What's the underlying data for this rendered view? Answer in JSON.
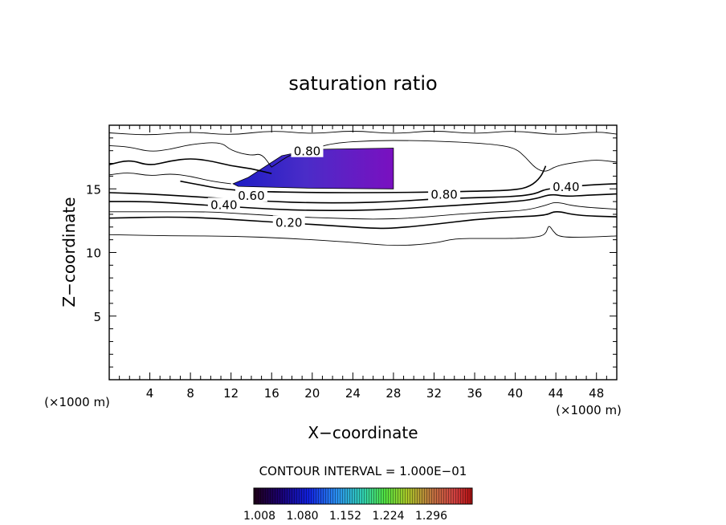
{
  "chart_data": {
    "type": "contour",
    "title": "saturation ratio",
    "xlabel": "X−coordinate",
    "ylabel": "Z−coordinate",
    "x_unit_label": "(×1000 m)",
    "y_unit_label": "(×1000 m)",
    "xlim": [
      0,
      50
    ],
    "ylim": [
      0,
      20
    ],
    "x_ticks": [
      4,
      8,
      12,
      16,
      20,
      24,
      28,
      32,
      36,
      40,
      44,
      48
    ],
    "y_ticks": [
      5,
      10,
      15
    ],
    "grid": false,
    "contour_interval_text": "CONTOUR INTERVAL = 1.000E−01",
    "contour_labels": [
      {
        "text": "0.20",
        "x": 17.7,
        "z": 12.4
      },
      {
        "text": "0.40",
        "x": 11.3,
        "z": 13.8
      },
      {
        "text": "0.40",
        "x": 45.0,
        "z": 15.2
      },
      {
        "text": "0.60",
        "x": 14.0,
        "z": 14.5
      },
      {
        "text": "0.80",
        "x": 33.0,
        "z": 14.6
      },
      {
        "text": "0.80",
        "x": 19.5,
        "z": 18.0
      }
    ],
    "contours": [
      {
        "level": 0.1,
        "points": [
          [
            0,
            11.4
          ],
          [
            6,
            11.3
          ],
          [
            12,
            11.3
          ],
          [
            18,
            11.1
          ],
          [
            24,
            10.8
          ],
          [
            28,
            10.5
          ],
          [
            32,
            10.7
          ],
          [
            34,
            11.1
          ],
          [
            37,
            11.1
          ],
          [
            40,
            11.1
          ],
          [
            42,
            11.2
          ],
          [
            43,
            11.4
          ],
          [
            43.3,
            12.2
          ],
          [
            43.7,
            11.7
          ],
          [
            44.3,
            11.2
          ],
          [
            47,
            11.2
          ],
          [
            50,
            11.3
          ]
        ]
      },
      {
        "level": 0.2,
        "points": [
          [
            0,
            12.7
          ],
          [
            6,
            12.8
          ],
          [
            10,
            12.7
          ],
          [
            14,
            12.5
          ],
          [
            18,
            12.3
          ],
          [
            22,
            12.1
          ],
          [
            26,
            11.9
          ],
          [
            28,
            11.9
          ],
          [
            32,
            12.2
          ],
          [
            36,
            12.6
          ],
          [
            40,
            12.8
          ],
          [
            43,
            12.9
          ],
          [
            44,
            13.3
          ],
          [
            46,
            12.9
          ],
          [
            50,
            12.8
          ]
        ]
      },
      {
        "level": 0.3,
        "points": [
          [
            0,
            13.2
          ],
          [
            6,
            13.2
          ],
          [
            10,
            13.2
          ],
          [
            14,
            13.0
          ],
          [
            18,
            12.8
          ],
          [
            22,
            12.7
          ],
          [
            26,
            12.6
          ],
          [
            30,
            12.7
          ],
          [
            34,
            13.0
          ],
          [
            38,
            13.2
          ],
          [
            41,
            13.3
          ],
          [
            43,
            13.7
          ],
          [
            44,
            14.0
          ],
          [
            46,
            13.6
          ],
          [
            50,
            13.4
          ]
        ]
      },
      {
        "level": 0.4,
        "points": [
          [
            0,
            14.0
          ],
          [
            4,
            14.0
          ],
          [
            8,
            13.8
          ],
          [
            12,
            13.6
          ],
          [
            16,
            13.4
          ],
          [
            20,
            13.3
          ],
          [
            24,
            13.3
          ],
          [
            28,
            13.4
          ],
          [
            32,
            13.6
          ],
          [
            36,
            13.8
          ],
          [
            40,
            14.0
          ],
          [
            42,
            14.2
          ],
          [
            43.5,
            14.6
          ],
          [
            45,
            14.4
          ],
          [
            47,
            14.5
          ],
          [
            50,
            14.6
          ]
        ]
      },
      {
        "level": 0.6,
        "points": [
          [
            0,
            14.7
          ],
          [
            4,
            14.6
          ],
          [
            8,
            14.4
          ],
          [
            12,
            14.2
          ],
          [
            16,
            14.0
          ],
          [
            20,
            13.9
          ],
          [
            24,
            13.9
          ],
          [
            28,
            14.0
          ],
          [
            32,
            14.2
          ],
          [
            36,
            14.3
          ],
          [
            40,
            14.4
          ],
          [
            42,
            14.6
          ],
          [
            43,
            15.0
          ],
          [
            45,
            15.1
          ],
          [
            47,
            15.3
          ],
          [
            50,
            15.4
          ]
        ]
      },
      {
        "level": 0.8,
        "points": [
          [
            7,
            15.6
          ],
          [
            9,
            15.3
          ],
          [
            11,
            15.0
          ],
          [
            14,
            14.8
          ],
          [
            20,
            14.7
          ],
          [
            28,
            14.7
          ],
          [
            36,
            14.8
          ],
          [
            40,
            14.9
          ],
          [
            41.5,
            15.2
          ],
          [
            42.5,
            15.9
          ],
          [
            43,
            16.8
          ]
        ]
      },
      {
        "level": 0.9,
        "points": [
          [
            16,
            16.7
          ],
          [
            18,
            17.8
          ],
          [
            20,
            18.1
          ],
          [
            22,
            18.6
          ],
          [
            26,
            18.8
          ],
          [
            30,
            18.8
          ],
          [
            34,
            18.7
          ],
          [
            38,
            18.5
          ],
          [
            40,
            18.2
          ],
          [
            41,
            17.5
          ],
          [
            42,
            16.6
          ],
          [
            43,
            16.3
          ],
          [
            44,
            16.8
          ],
          [
            46,
            17.1
          ],
          [
            48,
            17.3
          ],
          [
            50,
            17.1
          ]
        ]
      },
      {
        "level": 0.9,
        "points": [
          [
            0,
            18.4
          ],
          [
            2,
            18.3
          ],
          [
            4,
            17.9
          ],
          [
            6,
            18.1
          ],
          [
            8,
            18.5
          ],
          [
            11,
            18.7
          ],
          [
            12,
            18.0
          ],
          [
            14,
            17.6
          ],
          [
            15,
            17.8
          ],
          [
            16,
            16.7
          ]
        ]
      },
      {
        "level": 0.8,
        "points": [
          [
            0,
            16.9
          ],
          [
            2,
            17.3
          ],
          [
            4,
            16.8
          ],
          [
            6,
            17.2
          ],
          [
            8,
            17.4
          ],
          [
            10,
            17.2
          ],
          [
            12,
            16.8
          ],
          [
            14,
            16.6
          ],
          [
            16,
            16.2
          ]
        ]
      },
      {
        "level": 0.7,
        "points": [
          [
            0,
            16.1
          ],
          [
            2,
            16.3
          ],
          [
            4,
            16.0
          ],
          [
            6,
            16.2
          ],
          [
            8,
            16.0
          ],
          [
            10,
            15.6
          ],
          [
            12,
            15.4
          ]
        ]
      },
      {
        "level": 0.9,
        "points": [
          [
            0,
            19.4
          ],
          [
            4,
            19.2
          ],
          [
            8,
            19.5
          ],
          [
            12,
            19.2
          ],
          [
            16,
            19.6
          ],
          [
            20,
            19.3
          ],
          [
            24,
            19.6
          ],
          [
            28,
            19.3
          ],
          [
            32,
            19.6
          ],
          [
            36,
            19.3
          ],
          [
            40,
            19.6
          ],
          [
            44,
            19.2
          ],
          [
            48,
            19.5
          ],
          [
            50,
            19.3
          ]
        ]
      }
    ],
    "shaded_region": {
      "x_range": [
        12.2,
        28.0
      ],
      "z_top_right": 18.2,
      "z_bottom": 15.0,
      "description_levels": [
        1.008,
        1.296
      ]
    },
    "colorbar": {
      "ticks": [
        "1.008",
        "1.080",
        "1.152",
        "1.224",
        "1.296"
      ],
      "colors": [
        "#1a0010",
        "#1a0060",
        "#1010d0",
        "#2a8af0",
        "#30d0b0",
        "#40e040",
        "#a0d020",
        "#c08030",
        "#d04040",
        "#c01818"
      ]
    }
  }
}
